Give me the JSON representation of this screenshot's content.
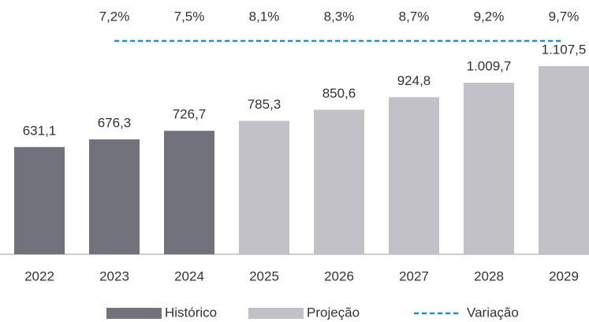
{
  "chart_data": {
    "type": "bar",
    "categories": [
      "2022",
      "2023",
      "2024",
      "2025",
      "2026",
      "2027",
      "2028",
      "2029"
    ],
    "series": [
      {
        "name": "Histórico",
        "color": "#72727c",
        "values": [
          631.1,
          676.3,
          726.7,
          null,
          null,
          null,
          null,
          null
        ],
        "value_labels": [
          "631,1",
          "676,3",
          "726,7",
          null,
          null,
          null,
          null,
          null
        ]
      },
      {
        "name": "Projeção",
        "color": "#c1c1c7",
        "values": [
          null,
          null,
          null,
          785.3,
          850.6,
          924.8,
          1009.7,
          1107.5
        ],
        "value_labels": [
          null,
          null,
          null,
          "785,3",
          "850,6",
          "924,8",
          "1.009,7",
          "1.107,5"
        ]
      },
      {
        "name": "Variação",
        "type": "line",
        "color": "#1a8fe0",
        "dashed": true,
        "values": [
          null,
          7.2,
          7.5,
          8.1,
          8.3,
          8.7,
          9.2,
          9.7
        ],
        "value_labels": [
          null,
          "7,2%",
          "7,5%",
          "8,1%",
          "8,3%",
          "8,7%",
          "9,2%",
          "9,7%"
        ]
      }
    ],
    "legend": "bottom"
  }
}
